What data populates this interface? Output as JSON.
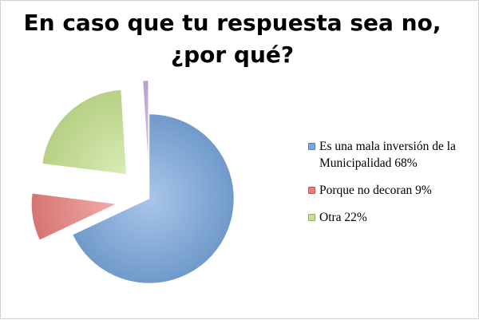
{
  "chart_data": {
    "type": "pie",
    "title": "En caso que tu respuesta sea no, ¿por qué?",
    "slices": [
      {
        "label": "Es una mala inversión de la Municipalidad 68%",
        "value": 68,
        "color": "#7aa7dd",
        "exploded": false
      },
      {
        "label": "Porque no decoran 9%",
        "value": 9,
        "color": "#e97f7c",
        "exploded": true
      },
      {
        "label": "Otra 22%",
        "value": 22,
        "color": "#c6e28f",
        "exploded": true
      },
      {
        "label": "",
        "value": 1,
        "color": "#c3aee3",
        "exploded": true
      }
    ],
    "legend_position": "right"
  }
}
